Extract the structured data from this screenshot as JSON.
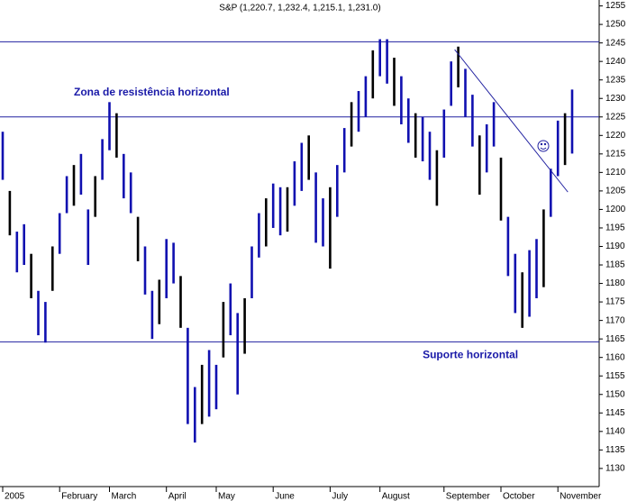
{
  "chart_data": {
    "type": "hilo",
    "title": "S&P (1,220.7, 1,232.4, 1,215.1, 1,231.0)",
    "categories": [
      "2005",
      null,
      null,
      null,
      null,
      null,
      null,
      null,
      "February",
      null,
      null,
      null,
      null,
      null,
      null,
      "March",
      null,
      null,
      null,
      null,
      null,
      null,
      null,
      "April",
      null,
      null,
      null,
      null,
      null,
      null,
      "May",
      null,
      null,
      null,
      null,
      null,
      null,
      null,
      "June",
      null,
      null,
      null,
      null,
      null,
      null,
      null,
      "July",
      null,
      null,
      null,
      null,
      null,
      null,
      "August",
      null,
      null,
      null,
      null,
      null,
      null,
      null,
      null,
      "September",
      null,
      null,
      null,
      null,
      null,
      null,
      null,
      "October",
      null,
      null,
      null,
      null,
      null,
      null,
      null,
      "November",
      null,
      null
    ],
    "high": [
      1221,
      1205,
      1194,
      1196,
      1188,
      1178,
      1175,
      1190,
      1199,
      1209,
      1212,
      1215,
      1200,
      1209,
      1219,
      1229,
      1226,
      1215,
      1210,
      1198,
      1190,
      1178,
      1181,
      1192,
      1191,
      1182,
      1168,
      1152,
      1158,
      1162,
      1158,
      1175,
      1180,
      1172,
      1176,
      1190,
      1199,
      1203,
      1207,
      1206,
      1206,
      1213,
      1218,
      1220,
      1210,
      1203,
      1206,
      1212,
      1222,
      1229,
      1232,
      1236,
      1243,
      1246,
      1246,
      1241,
      1236,
      1230,
      1226,
      1225,
      1221,
      1216,
      1227,
      1240,
      1244,
      1238,
      1231,
      1220,
      1223,
      1229,
      1214,
      1198,
      1188,
      1183,
      1189,
      1192,
      1200,
      1211,
      1224,
      1226,
      1232.4
    ],
    "low": [
      1208,
      1193,
      1183,
      1185,
      1176,
      1166,
      1164,
      1178,
      1188,
      1199,
      1201,
      1204,
      1185,
      1198,
      1208,
      1216,
      1214,
      1203,
      1199,
      1186,
      1177,
      1165,
      1169,
      1176,
      1180,
      1168,
      1142,
      1137,
      1142,
      1144,
      1146,
      1160,
      1166,
      1150,
      1161,
      1176,
      1187,
      1190,
      1195,
      1193,
      1194,
      1201,
      1205,
      1208,
      1191,
      1190,
      1184,
      1198,
      1210,
      1217,
      1221,
      1225,
      1230,
      1236,
      1234,
      1228,
      1223,
      1218,
      1214,
      1213,
      1208,
      1201,
      1214,
      1228,
      1233,
      1225,
      1217,
      1204,
      1210,
      1217,
      1197,
      1182,
      1172,
      1168,
      1171,
      1176,
      1179,
      1198,
      1209,
      1212,
      1215.1
    ],
    "color": "#1010b0",
    "ylim": [
      1125.1,
      1256.6
    ],
    "yticks": [
      1130,
      1135,
      1140,
      1145,
      1150,
      1155,
      1160,
      1165,
      1170,
      1175,
      1180,
      1185,
      1190,
      1195,
      1200,
      1205,
      1210,
      1215,
      1220,
      1225,
      1230,
      1235,
      1240,
      1245,
      1250,
      1255
    ],
    "reference_lines": [
      1245.3,
      1225,
      1164.2
    ],
    "trendline": [
      [
        63.5,
        1243.2
      ],
      [
        79.4,
        1204.7
      ]
    ],
    "line_color": "#2020a0",
    "annotations": [
      {
        "text": "Zona de resistência horizontal",
        "value": 1231.5,
        "index": 10
      },
      {
        "text": "Suporte horizontal",
        "value": 1160.6,
        "index": 59
      }
    ]
  }
}
